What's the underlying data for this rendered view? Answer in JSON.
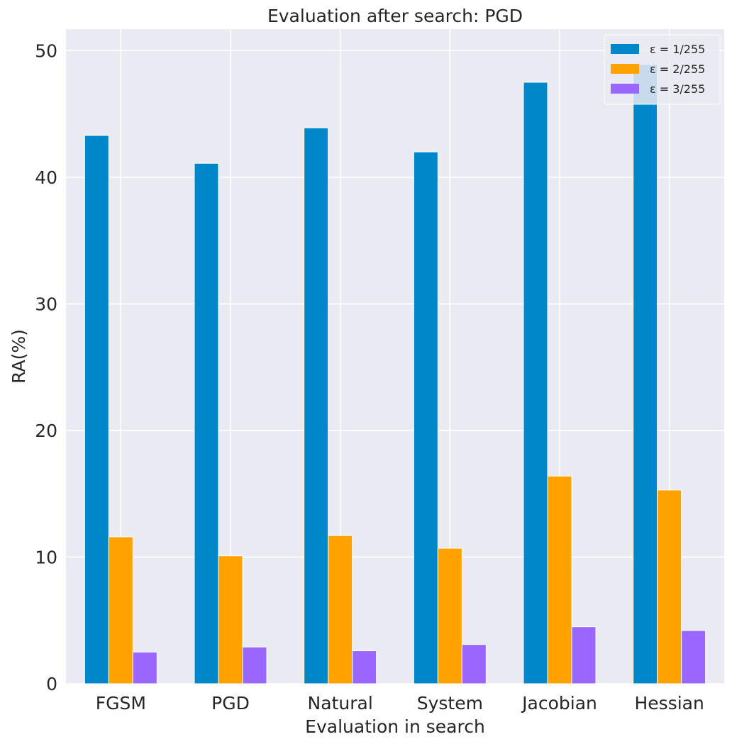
{
  "chart_data": {
    "type": "bar",
    "title": "Evaluation after search: PGD",
    "xlabel": "Evaluation in search",
    "ylabel": "RA(%)",
    "ylim": [
      0,
      51.7
    ],
    "yticks": [
      0,
      10,
      20,
      30,
      40,
      50
    ],
    "grid": true,
    "legend_position": "top-right",
    "categories": [
      "FGSM",
      "PGD",
      "Natural",
      "System",
      "Jacobian",
      "Hessian"
    ],
    "series": [
      {
        "name": "ε = 1/255",
        "color": "#0087c9",
        "values": [
          43.3,
          41.1,
          43.9,
          42.0,
          47.5,
          48.9
        ]
      },
      {
        "name": "ε = 2/255",
        "color": "#ffa200",
        "values": [
          11.6,
          10.1,
          11.7,
          10.7,
          16.4,
          15.3
        ]
      },
      {
        "name": "ε = 3/255",
        "color": "#9966ff",
        "values": [
          2.5,
          2.9,
          2.6,
          3.1,
          4.5,
          4.2
        ]
      }
    ]
  }
}
